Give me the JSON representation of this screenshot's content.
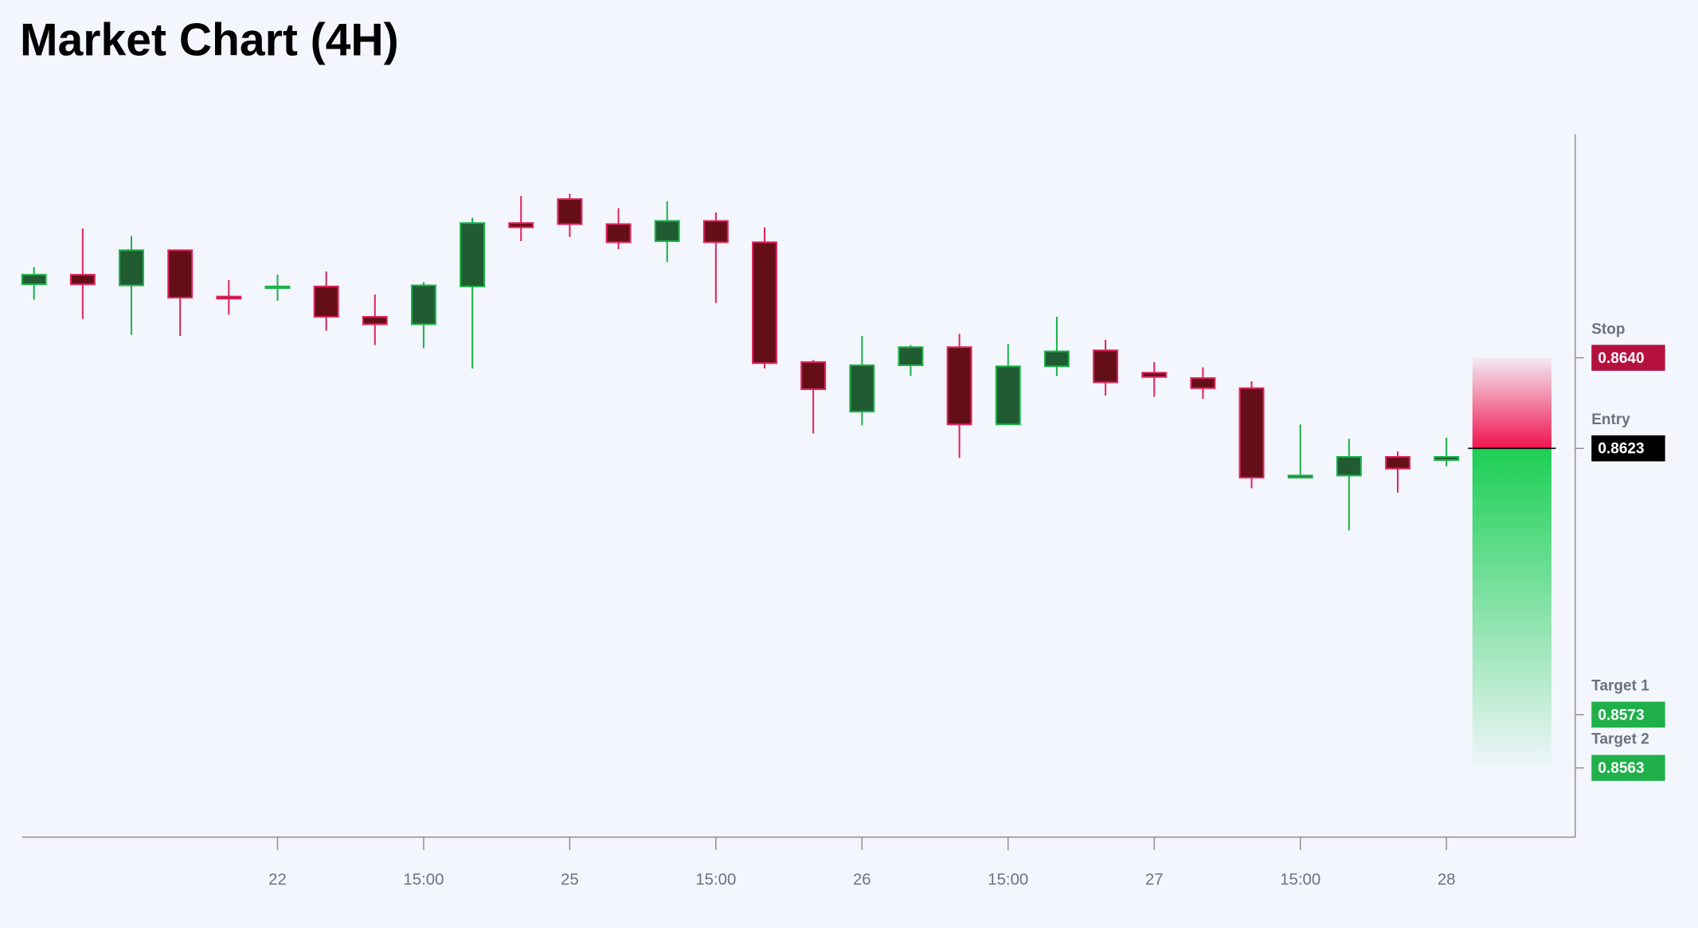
{
  "chart_data": {
    "type": "candlestick",
    "title": "Market Chart (4H)",
    "categories": [
      null,
      null,
      null,
      null,
      null,
      "22",
      null,
      null,
      "15:00",
      null,
      null,
      "25",
      null,
      null,
      "15:00",
      null,
      null,
      "26",
      null,
      null,
      "15:00",
      null,
      null,
      "27",
      null,
      null,
      "15:00",
      null,
      null,
      "28"
    ],
    "open": [
      0.86538,
      0.86556,
      0.86536,
      0.86602,
      0.86515,
      0.86532,
      0.86534,
      0.86477,
      0.86463,
      0.86534,
      0.86653,
      0.86698,
      0.86651,
      0.86619,
      0.86657,
      0.86617,
      0.86392,
      0.86299,
      0.86386,
      0.8642,
      0.86275,
      0.86384,
      0.86414,
      0.86372,
      0.86362,
      0.86343,
      0.86175,
      0.86179,
      0.86214,
      0.86208
    ],
    "high": [
      0.8657,
      0.86643,
      0.86629,
      0.86602,
      0.86546,
      0.86556,
      0.86562,
      0.86519,
      0.86542,
      0.86663,
      0.86704,
      0.86708,
      0.86681,
      0.86694,
      0.86673,
      0.86645,
      0.86396,
      0.86441,
      0.86424,
      0.86445,
      0.86426,
      0.86477,
      0.86434,
      0.86392,
      0.86382,
      0.86356,
      0.86275,
      0.86248,
      0.86224,
      0.8625
    ],
    "low": [
      0.86509,
      0.86473,
      0.86443,
      0.86441,
      0.86481,
      0.86507,
      0.86451,
      0.86424,
      0.86418,
      0.8638,
      0.86619,
      0.86627,
      0.86604,
      0.8658,
      0.86503,
      0.8638,
      0.86258,
      0.86273,
      0.86366,
      0.86212,
      0.86275,
      0.86366,
      0.86329,
      0.86327,
      0.86323,
      0.86155,
      0.86175,
      0.86076,
      0.86147,
      0.86196
    ],
    "close": [
      0.86556,
      0.86538,
      0.86602,
      0.86513,
      0.86511,
      0.86534,
      0.86477,
      0.86463,
      0.86536,
      0.86653,
      0.86645,
      0.86651,
      0.86617,
      0.86657,
      0.86617,
      0.8639,
      0.86341,
      0.86386,
      0.8642,
      0.86275,
      0.86384,
      0.86412,
      0.86354,
      0.86364,
      0.86343,
      0.86175,
      0.86179,
      0.86214,
      0.86192,
      0.86214
    ],
    "up_color": "#1cb34a",
    "up_fill": "#215b32",
    "down_color": "#e0245e",
    "down_fill": "#640f17",
    "ylim": [
      0.855,
      0.8682
    ],
    "levels": [
      {
        "name": "Stop",
        "value": 0.864,
        "label": "0.8640",
        "color": "#b5113f"
      },
      {
        "name": "Entry",
        "value": 0.8623,
        "color": "#000000"
      },
      {
        "name": "Target 1",
        "value": 0.8573,
        "color": "#1fb04a"
      },
      {
        "name": "Target 2",
        "value": 0.8563,
        "color": "#1fb04a"
      }
    ]
  }
}
